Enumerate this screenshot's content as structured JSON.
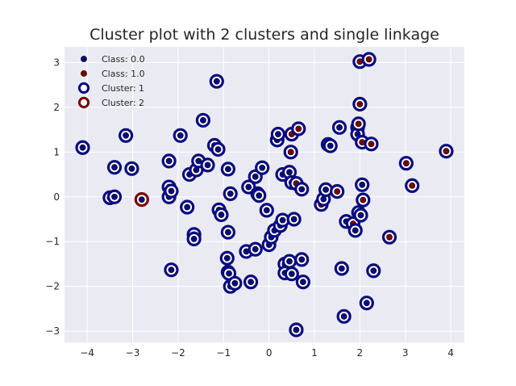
{
  "chart_data": {
    "type": "scatter",
    "title": "Cluster plot with 2 clusters and single linkage",
    "xlabel": "",
    "ylabel": "",
    "xlim": [
      -4.5,
      4.3
    ],
    "ylim": [
      -3.25,
      3.35
    ],
    "xticks": [
      "−4",
      "−3",
      "−2",
      "−1",
      "0",
      "1",
      "2",
      "3",
      "4"
    ],
    "yticks": [
      "−3",
      "−2",
      "−1",
      "0",
      "1",
      "2",
      "3"
    ],
    "xtick_values": [
      -4,
      -3,
      -2,
      -1,
      0,
      1,
      2,
      3,
      4
    ],
    "ytick_values": [
      -3,
      -2,
      -1,
      0,
      1,
      2,
      3
    ],
    "grid": true,
    "background": "#eaeaf2",
    "legend_position": "top-left",
    "legend": [
      {
        "label": "Class: 0.0",
        "marker": "dot",
        "color": "#0a0a80"
      },
      {
        "label": "Class: 1.0",
        "marker": "dot",
        "color": "#7a0000"
      },
      {
        "label": "Cluster: 1",
        "marker": "ring",
        "color": "#0a0a80"
      },
      {
        "label": "Cluster: 2",
        "marker": "ring",
        "color": "#7a0000"
      }
    ],
    "class_colors": {
      "0": "#0a0a80",
      "1": "#7a0000"
    },
    "cluster_colors": {
      "1": "#0a0a80",
      "2": "#7a0000"
    },
    "points": [
      {
        "x": -4.1,
        "y": 1.1,
        "c": 0,
        "k": 1
      },
      {
        "x": -3.5,
        "y": -0.02,
        "c": 0,
        "k": 1
      },
      {
        "x": -3.4,
        "y": 0.0,
        "c": 0,
        "k": 1
      },
      {
        "x": -3.4,
        "y": 0.66,
        "c": 0,
        "k": 1
      },
      {
        "x": -3.15,
        "y": 1.37,
        "c": 0,
        "k": 1
      },
      {
        "x": -3.02,
        "y": 0.63,
        "c": 0,
        "k": 1
      },
      {
        "x": -2.8,
        "y": -0.06,
        "c": 0,
        "k": 2
      },
      {
        "x": -2.2,
        "y": 0.8,
        "c": 0,
        "k": 1
      },
      {
        "x": -2.2,
        "y": 0.22,
        "c": 0,
        "k": 1
      },
      {
        "x": -2.2,
        "y": 0.0,
        "c": 0,
        "k": 1
      },
      {
        "x": -2.15,
        "y": 0.13,
        "c": 0,
        "k": 1
      },
      {
        "x": -2.15,
        "y": -1.63,
        "c": 0,
        "k": 1
      },
      {
        "x": -1.95,
        "y": 1.37,
        "c": 0,
        "k": 1
      },
      {
        "x": -1.8,
        "y": -0.23,
        "c": 0,
        "k": 1
      },
      {
        "x": -1.75,
        "y": 0.5,
        "c": 0,
        "k": 1
      },
      {
        "x": -1.65,
        "y": -0.84,
        "c": 0,
        "k": 1
      },
      {
        "x": -1.65,
        "y": -0.94,
        "c": 0,
        "k": 1
      },
      {
        "x": -1.6,
        "y": 0.6,
        "c": 0,
        "k": 1
      },
      {
        "x": -1.55,
        "y": 0.8,
        "c": 0,
        "k": 1
      },
      {
        "x": -1.45,
        "y": 1.71,
        "c": 0,
        "k": 1
      },
      {
        "x": -1.35,
        "y": 0.71,
        "c": 0,
        "k": 1
      },
      {
        "x": -1.2,
        "y": 1.15,
        "c": 0,
        "k": 1
      },
      {
        "x": -1.15,
        "y": 2.58,
        "c": 0,
        "k": 1
      },
      {
        "x": -1.12,
        "y": 1.06,
        "c": 0,
        "k": 1
      },
      {
        "x": -1.1,
        "y": -0.29,
        "c": 0,
        "k": 1
      },
      {
        "x": -1.05,
        "y": -0.4,
        "c": 0,
        "k": 1
      },
      {
        "x": -0.9,
        "y": 0.62,
        "c": 0,
        "k": 1
      },
      {
        "x": -0.9,
        "y": -0.79,
        "c": 0,
        "k": 1
      },
      {
        "x": -0.92,
        "y": -1.37,
        "c": 0,
        "k": 1
      },
      {
        "x": -0.9,
        "y": -1.68,
        "c": 0,
        "k": 1
      },
      {
        "x": -0.88,
        "y": -1.71,
        "c": 0,
        "k": 1
      },
      {
        "x": -0.85,
        "y": 0.07,
        "c": 0,
        "k": 1
      },
      {
        "x": -0.85,
        "y": -2.0,
        "c": 0,
        "k": 1
      },
      {
        "x": -0.75,
        "y": -1.93,
        "c": 0,
        "k": 1
      },
      {
        "x": -0.5,
        "y": -1.22,
        "c": 0,
        "k": 1
      },
      {
        "x": -0.45,
        "y": 0.22,
        "c": 0,
        "k": 1
      },
      {
        "x": -0.4,
        "y": -1.9,
        "c": 0,
        "k": 1
      },
      {
        "x": -0.3,
        "y": 0.45,
        "c": 0,
        "k": 1
      },
      {
        "x": -0.3,
        "y": -1.17,
        "c": 0,
        "k": 1
      },
      {
        "x": -0.25,
        "y": 0.07,
        "c": 0,
        "k": 1
      },
      {
        "x": -0.22,
        "y": 0.03,
        "c": 0,
        "k": 1
      },
      {
        "x": -0.15,
        "y": 0.65,
        "c": 0,
        "k": 1
      },
      {
        "x": -0.05,
        "y": -0.3,
        "c": 0,
        "k": 1
      },
      {
        "x": 0.0,
        "y": -1.07,
        "c": 0,
        "k": 1
      },
      {
        "x": 0.05,
        "y": -0.9,
        "c": 0,
        "k": 1
      },
      {
        "x": 0.12,
        "y": -0.75,
        "c": 0,
        "k": 1
      },
      {
        "x": 0.18,
        "y": 1.27,
        "c": 0,
        "k": 1
      },
      {
        "x": 0.2,
        "y": 1.4,
        "c": 0,
        "k": 1
      },
      {
        "x": 0.25,
        "y": -0.64,
        "c": 0,
        "k": 1
      },
      {
        "x": 0.3,
        "y": -0.52,
        "c": 0,
        "k": 1
      },
      {
        "x": 0.3,
        "y": 0.5,
        "c": 0,
        "k": 1
      },
      {
        "x": 0.35,
        "y": -1.5,
        "c": 0,
        "k": 1
      },
      {
        "x": 0.35,
        "y": -1.7,
        "c": 0,
        "k": 1
      },
      {
        "x": 0.45,
        "y": 0.55,
        "c": 0,
        "k": 1
      },
      {
        "x": 0.45,
        "y": -1.44,
        "c": 0,
        "k": 1
      },
      {
        "x": 0.48,
        "y": 1.0,
        "c": 1,
        "k": 1
      },
      {
        "x": 0.5,
        "y": 1.4,
        "c": 1,
        "k": 1
      },
      {
        "x": 0.5,
        "y": -1.72,
        "c": 0,
        "k": 1
      },
      {
        "x": 0.5,
        "y": 0.32,
        "c": 0,
        "k": 1
      },
      {
        "x": 0.55,
        "y": -0.5,
        "c": 0,
        "k": 1
      },
      {
        "x": 0.6,
        "y": 0.3,
        "c": 1,
        "k": 1
      },
      {
        "x": 0.6,
        "y": -2.97,
        "c": 0,
        "k": 1
      },
      {
        "x": 0.65,
        "y": 1.52,
        "c": 1,
        "k": 1
      },
      {
        "x": 0.72,
        "y": 0.17,
        "c": 0,
        "k": 1
      },
      {
        "x": 0.72,
        "y": -1.4,
        "c": 0,
        "k": 1
      },
      {
        "x": 0.75,
        "y": -1.9,
        "c": 0,
        "k": 1
      },
      {
        "x": 1.15,
        "y": -0.17,
        "c": 1,
        "k": 1
      },
      {
        "x": 1.2,
        "y": -0.05,
        "c": 0,
        "k": 1
      },
      {
        "x": 1.25,
        "y": 0.16,
        "c": 0,
        "k": 1
      },
      {
        "x": 1.3,
        "y": 1.17,
        "c": 0,
        "k": 1
      },
      {
        "x": 1.35,
        "y": 1.14,
        "c": 0,
        "k": 1
      },
      {
        "x": 1.5,
        "y": 0.12,
        "c": 1,
        "k": 1
      },
      {
        "x": 1.55,
        "y": 1.55,
        "c": 0,
        "k": 1
      },
      {
        "x": 1.6,
        "y": -1.6,
        "c": 0,
        "k": 1
      },
      {
        "x": 1.65,
        "y": -2.67,
        "c": 0,
        "k": 1
      },
      {
        "x": 1.7,
        "y": -0.55,
        "c": 0,
        "k": 1
      },
      {
        "x": 1.85,
        "y": -0.6,
        "c": 1,
        "k": 1
      },
      {
        "x": 1.9,
        "y": -0.75,
        "c": 0,
        "k": 1
      },
      {
        "x": 1.95,
        "y": 1.55,
        "c": 1,
        "k": 1
      },
      {
        "x": 1.95,
        "y": 1.4,
        "c": 0,
        "k": 1
      },
      {
        "x": 1.97,
        "y": 1.63,
        "c": 1,
        "k": 1
      },
      {
        "x": 1.97,
        "y": -0.35,
        "c": 1,
        "k": 1
      },
      {
        "x": 2.0,
        "y": 3.02,
        "c": 1,
        "k": 1
      },
      {
        "x": 2.0,
        "y": 2.07,
        "c": 1,
        "k": 1
      },
      {
        "x": 2.02,
        "y": -0.41,
        "c": 0,
        "k": 1
      },
      {
        "x": 2.05,
        "y": 1.22,
        "c": 1,
        "k": 1
      },
      {
        "x": 2.05,
        "y": 0.27,
        "c": 0,
        "k": 1
      },
      {
        "x": 2.07,
        "y": -0.07,
        "c": 1,
        "k": 1
      },
      {
        "x": 2.15,
        "y": -2.37,
        "c": 0,
        "k": 1
      },
      {
        "x": 2.2,
        "y": 3.07,
        "c": 1,
        "k": 1
      },
      {
        "x": 2.25,
        "y": 1.18,
        "c": 1,
        "k": 1
      },
      {
        "x": 2.3,
        "y": -1.65,
        "c": 0,
        "k": 1
      },
      {
        "x": 2.65,
        "y": -0.9,
        "c": 1,
        "k": 1
      },
      {
        "x": 3.02,
        "y": 0.75,
        "c": 1,
        "k": 1
      },
      {
        "x": 3.15,
        "y": 0.25,
        "c": 1,
        "k": 1
      },
      {
        "x": 3.9,
        "y": 1.02,
        "c": 1,
        "k": 1
      }
    ]
  }
}
